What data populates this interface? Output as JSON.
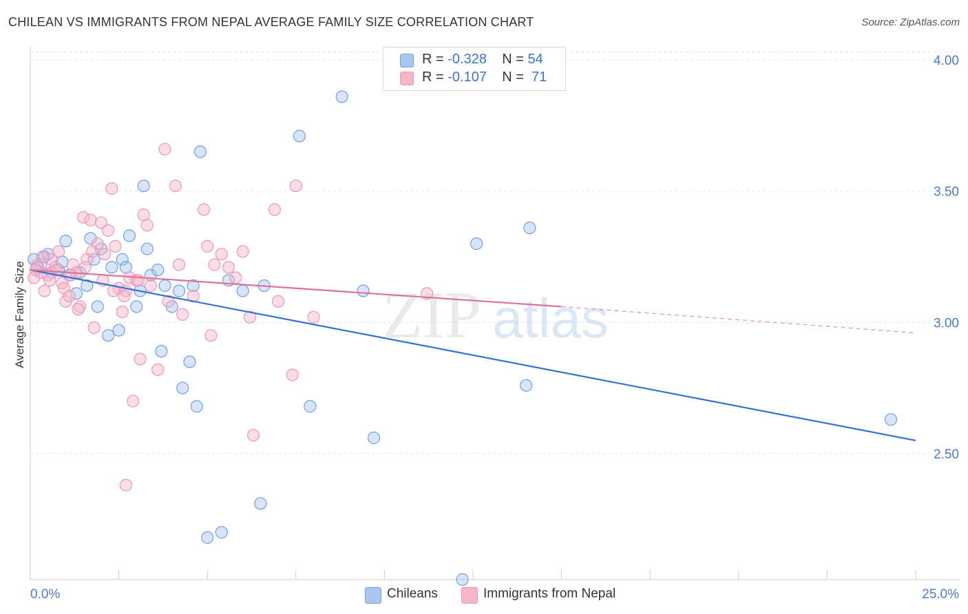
{
  "title": "CHILEAN VS IMMIGRANTS FROM NEPAL AVERAGE FAMILY SIZE CORRELATION CHART",
  "source": "Source: ZipAtlas.com",
  "watermark": {
    "zip": "ZIP",
    "atlas": "atlas"
  },
  "legend": {
    "rows": [
      {
        "r_label": "R =",
        "r_value": "-0.328",
        "n_label": "N =",
        "n_value": "54",
        "color": "#a9c6ef"
      },
      {
        "r_label": "R =",
        "r_value": "-0.107",
        "n_label": "N =",
        "n_value": "71",
        "color": "#f5b6ca"
      }
    ]
  },
  "chart_data": {
    "type": "scatter",
    "title": "CHILEAN VS IMMIGRANTS FROM NEPAL AVERAGE FAMILY SIZE CORRELATION CHART",
    "xlabel": "",
    "ylabel": "Average Family Size",
    "xlim": [
      0,
      25
    ],
    "ylim": [
      2.02,
      4.05
    ],
    "x_tick_labels": [
      "0.0%",
      "25.0%"
    ],
    "y_ticks": [
      2.5,
      3.0,
      3.5,
      4.0
    ],
    "y_tick_labels": [
      "2.50",
      "3.00",
      "3.50",
      "4.00"
    ],
    "grid": "horizontal dashed",
    "legend_position": "top-center",
    "series": [
      {
        "name": "Chileans",
        "color": "#6f9fe0",
        "fill": "#a9c6ef",
        "trend_color": "#2f72d4",
        "trend": {
          "x": [
            0,
            25
          ],
          "y": [
            3.2,
            2.55
          ]
        },
        "points": [
          [
            0.1,
            3.24
          ],
          [
            0.3,
            3.22
          ],
          [
            0.4,
            3.25
          ],
          [
            0.5,
            3.26
          ],
          [
            0.6,
            3.19
          ],
          [
            0.8,
            3.2
          ],
          [
            0.9,
            3.23
          ],
          [
            1.0,
            3.31
          ],
          [
            1.1,
            3.18
          ],
          [
            1.3,
            3.11
          ],
          [
            1.4,
            3.19
          ],
          [
            1.6,
            3.14
          ],
          [
            1.7,
            3.32
          ],
          [
            1.8,
            3.24
          ],
          [
            1.9,
            3.06
          ],
          [
            2.0,
            3.28
          ],
          [
            2.2,
            2.95
          ],
          [
            2.3,
            3.21
          ],
          [
            2.5,
            2.97
          ],
          [
            2.6,
            3.24
          ],
          [
            2.7,
            3.21
          ],
          [
            2.8,
            3.33
          ],
          [
            3.0,
            3.06
          ],
          [
            3.1,
            3.12
          ],
          [
            3.2,
            3.52
          ],
          [
            3.3,
            3.28
          ],
          [
            3.4,
            3.18
          ],
          [
            3.6,
            3.2
          ],
          [
            3.7,
            2.89
          ],
          [
            3.8,
            3.14
          ],
          [
            4.0,
            3.06
          ],
          [
            4.2,
            3.12
          ],
          [
            4.3,
            2.75
          ],
          [
            4.5,
            2.85
          ],
          [
            4.6,
            3.14
          ],
          [
            4.7,
            2.68
          ],
          [
            4.8,
            3.65
          ],
          [
            5.0,
            2.18
          ],
          [
            5.4,
            2.2
          ],
          [
            5.6,
            3.16
          ],
          [
            6.0,
            3.12
          ],
          [
            6.5,
            2.31
          ],
          [
            6.6,
            3.14
          ],
          [
            7.6,
            3.71
          ],
          [
            7.9,
            2.68
          ],
          [
            8.8,
            3.86
          ],
          [
            9.4,
            3.12
          ],
          [
            9.7,
            2.56
          ],
          [
            12.2,
            2.02
          ],
          [
            12.6,
            3.3
          ],
          [
            14.0,
            2.76
          ],
          [
            14.1,
            3.36
          ],
          [
            24.3,
            2.63
          ],
          [
            0.2,
            3.21
          ]
        ]
      },
      {
        "name": "Immigrants from Nepal",
        "color": "#ee96b2",
        "fill": "#f5b6ca",
        "trend_color": "#e07098",
        "trend": {
          "x": [
            0,
            15
          ],
          "y": [
            3.2,
            3.06
          ]
        },
        "trend_ext": {
          "x": [
            15,
            25
          ],
          "y": [
            3.06,
            2.96
          ]
        },
        "points": [
          [
            0.1,
            3.17
          ],
          [
            0.2,
            3.22
          ],
          [
            0.3,
            3.19
          ],
          [
            0.4,
            3.12
          ],
          [
            0.5,
            3.18
          ],
          [
            0.6,
            3.24
          ],
          [
            0.7,
            3.21
          ],
          [
            0.8,
            3.27
          ],
          [
            0.9,
            3.15
          ],
          [
            1.0,
            3.08
          ],
          [
            1.1,
            3.1
          ],
          [
            1.2,
            3.22
          ],
          [
            1.3,
            3.19
          ],
          [
            1.4,
            3.06
          ],
          [
            1.5,
            3.4
          ],
          [
            1.6,
            3.24
          ],
          [
            1.7,
            3.39
          ],
          [
            1.8,
            2.98
          ],
          [
            1.9,
            3.3
          ],
          [
            2.0,
            3.38
          ],
          [
            2.1,
            3.26
          ],
          [
            2.2,
            3.35
          ],
          [
            2.3,
            3.51
          ],
          [
            2.4,
            3.29
          ],
          [
            2.5,
            3.13
          ],
          [
            2.6,
            3.04
          ],
          [
            2.7,
            3.12
          ],
          [
            2.8,
            3.17
          ],
          [
            2.9,
            2.7
          ],
          [
            3.0,
            3.16
          ],
          [
            3.1,
            2.86
          ],
          [
            3.2,
            3.41
          ],
          [
            3.3,
            3.37
          ],
          [
            3.4,
            3.14
          ],
          [
            3.6,
            2.82
          ],
          [
            3.8,
            3.66
          ],
          [
            3.9,
            3.08
          ],
          [
            4.1,
            3.52
          ],
          [
            4.2,
            3.22
          ],
          [
            4.3,
            3.03
          ],
          [
            4.9,
            3.43
          ],
          [
            5.0,
            3.29
          ],
          [
            5.1,
            2.95
          ],
          [
            5.4,
            3.26
          ],
          [
            5.6,
            3.21
          ],
          [
            5.8,
            3.17
          ],
          [
            6.0,
            3.27
          ],
          [
            6.2,
            3.02
          ],
          [
            6.3,
            2.57
          ],
          [
            6.9,
            3.43
          ],
          [
            7.0,
            3.08
          ],
          [
            7.4,
            2.8
          ],
          [
            7.5,
            3.52
          ],
          [
            8.0,
            3.02
          ],
          [
            11.2,
            3.11
          ],
          [
            2.7,
            2.38
          ],
          [
            0.15,
            3.2
          ],
          [
            0.35,
            3.25
          ],
          [
            0.55,
            3.16
          ],
          [
            0.75,
            3.2
          ],
          [
            0.95,
            3.13
          ],
          [
            1.15,
            3.18
          ],
          [
            1.35,
            3.05
          ],
          [
            1.55,
            3.21
          ],
          [
            1.75,
            3.27
          ],
          [
            2.05,
            3.16
          ],
          [
            2.35,
            3.12
          ],
          [
            2.65,
            3.1
          ],
          [
            3.05,
            3.16
          ],
          [
            4.6,
            3.1
          ],
          [
            5.2,
            3.22
          ]
        ]
      }
    ]
  },
  "bottom_legend": [
    {
      "label": "Chileans",
      "color": "#a9c6ef",
      "border": "#6f9fe0"
    },
    {
      "label": "Immigrants from Nepal",
      "color": "#f5b6ca",
      "border": "#ee96b2"
    }
  ]
}
